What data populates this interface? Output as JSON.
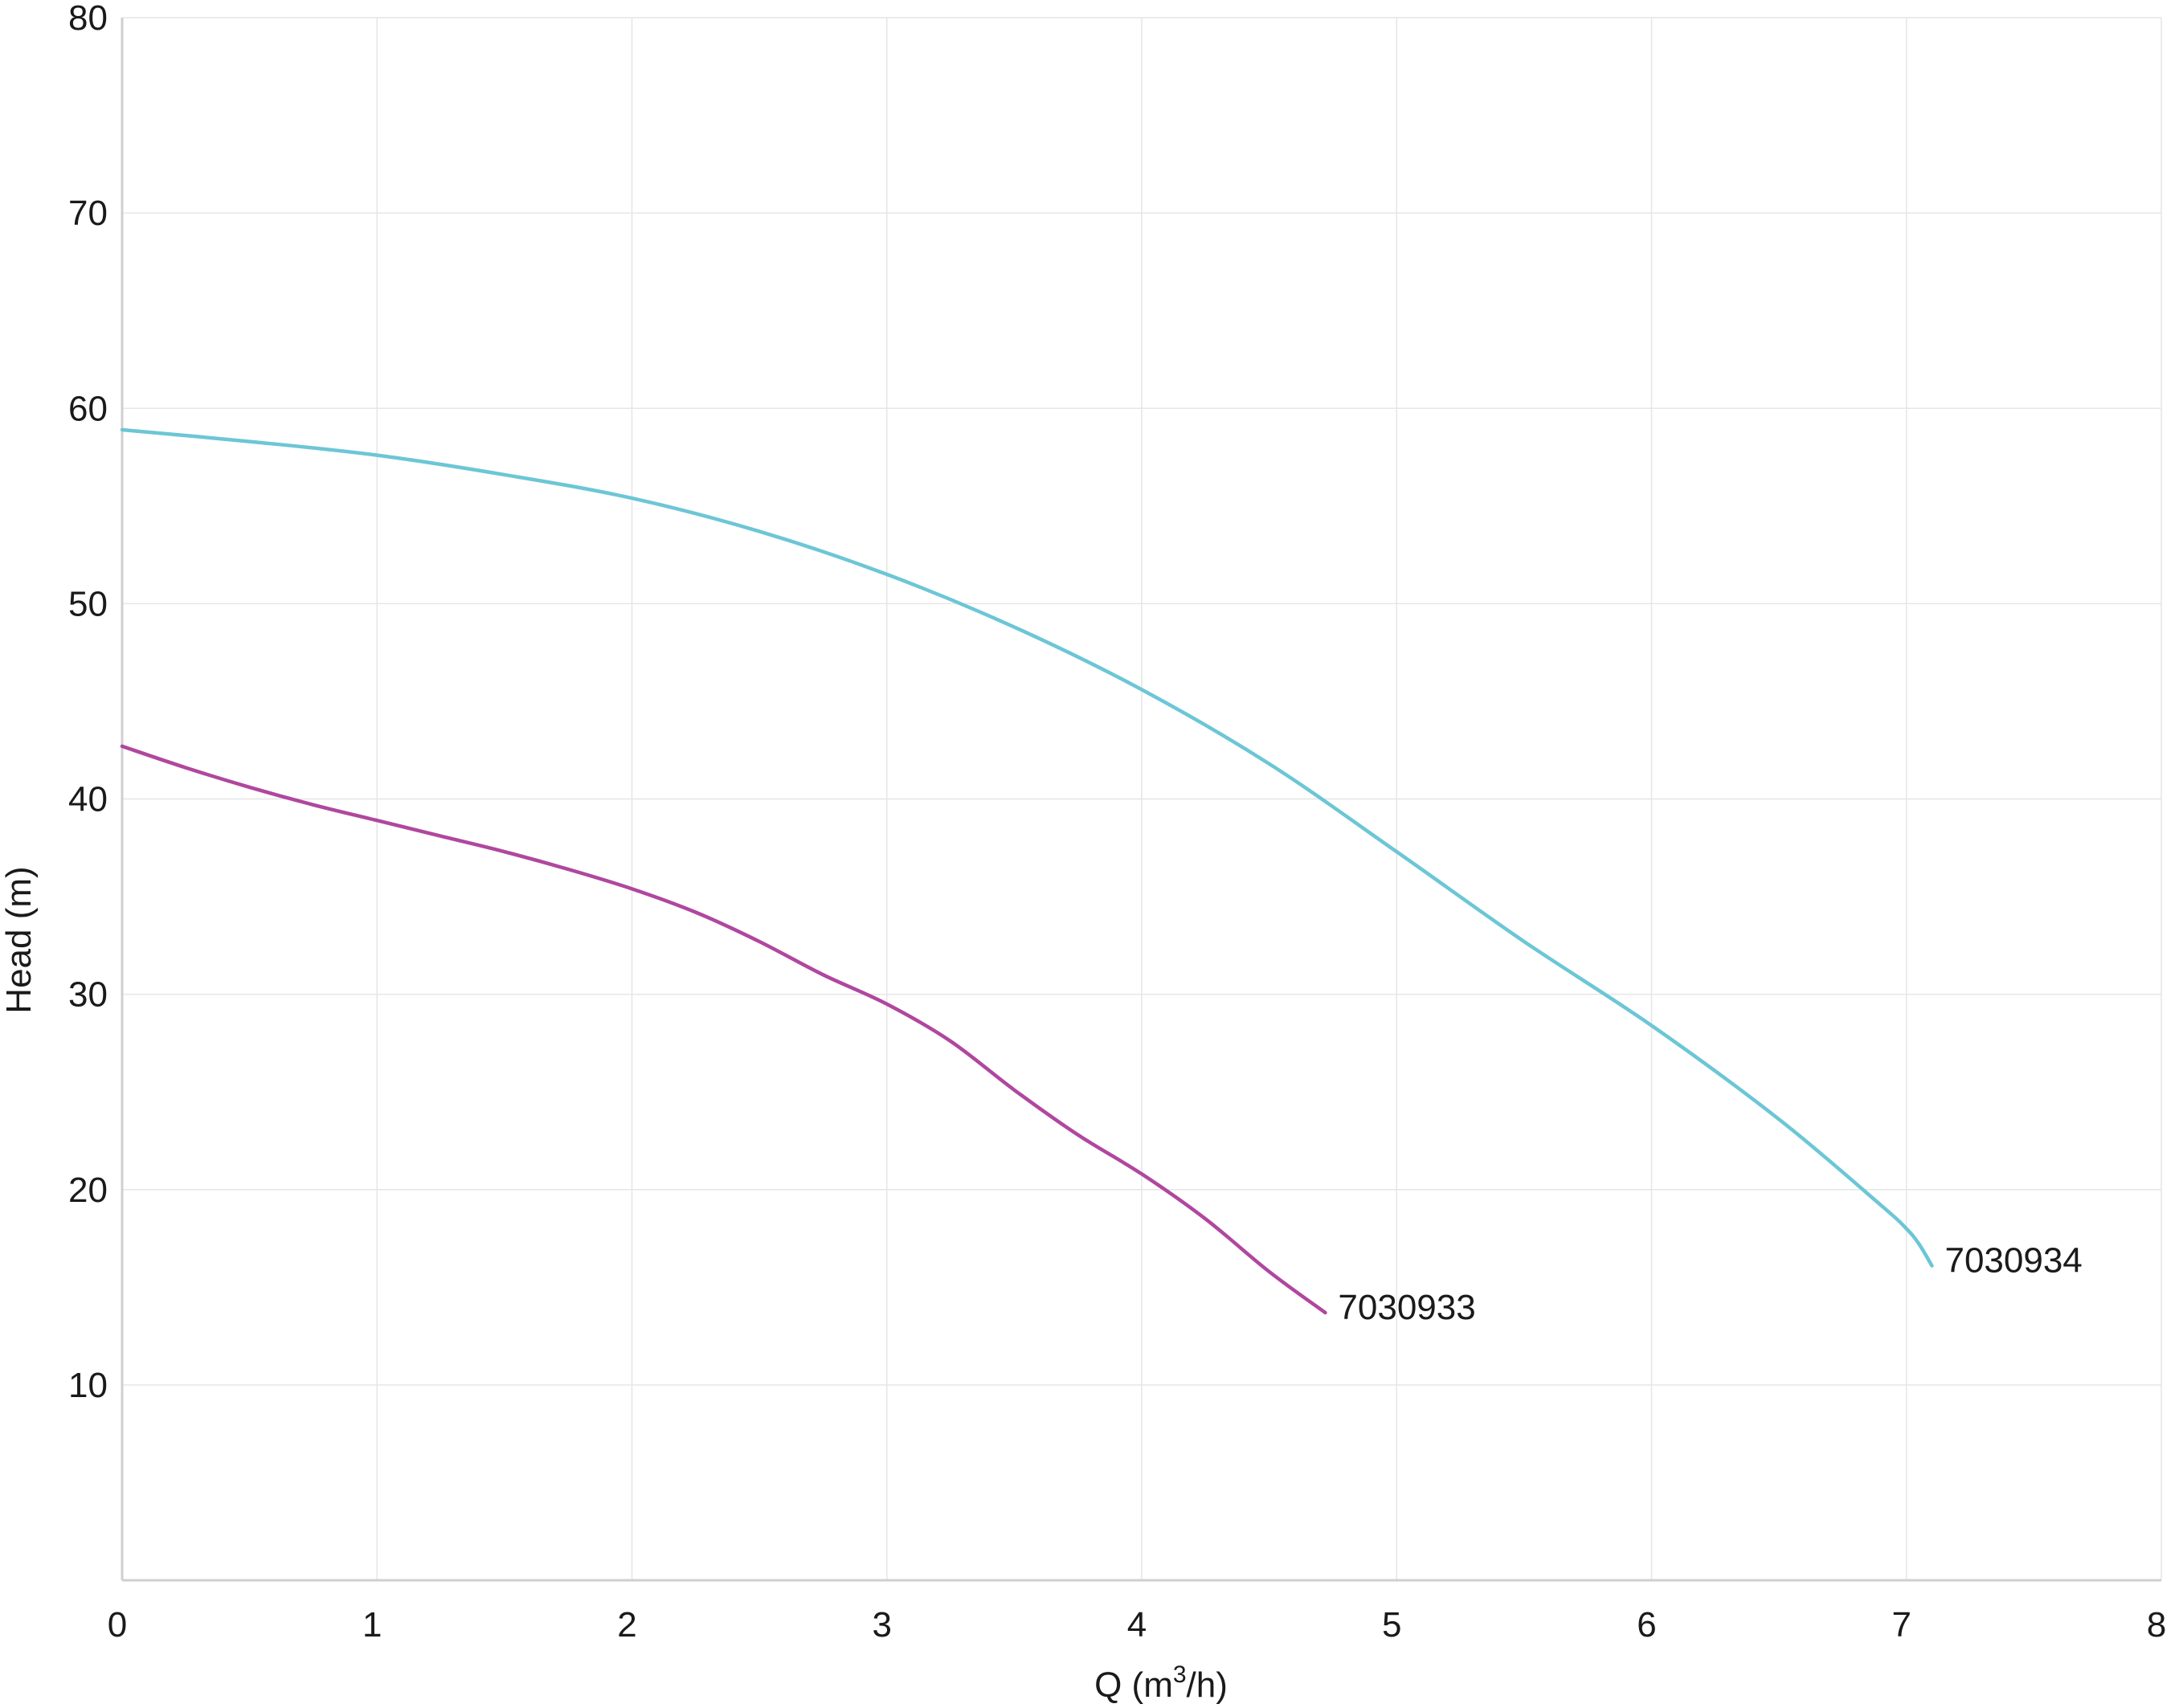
{
  "chart_data": {
    "type": "line",
    "title": "",
    "xlabel": "Q (m",
    "xlabel_sup": "3",
    "xlabel_tail": "/h)",
    "ylabel": "Head (m)",
    "xlim": [
      0,
      8
    ],
    "ylim": [
      0,
      80
    ],
    "x_ticks": [
      0,
      1,
      2,
      3,
      4,
      5,
      6,
      7,
      8
    ],
    "y_ticks": [
      10,
      20,
      30,
      40,
      50,
      60,
      70,
      80
    ],
    "x_tick_labels": [
      "0",
      "1",
      "2",
      "3",
      "4",
      "5",
      "6",
      "7",
      "8"
    ],
    "y_tick_labels": [
      "10",
      "20",
      "30",
      "40",
      "50",
      "60",
      "70",
      "80"
    ],
    "grid": true,
    "series": [
      {
        "name": "7030933",
        "color": "#b0479f",
        "points": [
          [
            0,
            42.7
          ],
          [
            0.25,
            41.6
          ],
          [
            0.5,
            40.6
          ],
          [
            0.75,
            39.7
          ],
          [
            1.0,
            38.9
          ],
          [
            1.25,
            38.1
          ],
          [
            1.5,
            37.3
          ],
          [
            1.75,
            36.4
          ],
          [
            2.0,
            35.4
          ],
          [
            2.25,
            34.2
          ],
          [
            2.5,
            32.7
          ],
          [
            2.75,
            31.0
          ],
          [
            3.0,
            29.5
          ],
          [
            3.25,
            27.6
          ],
          [
            3.5,
            25.1
          ],
          [
            3.75,
            22.8
          ],
          [
            4.0,
            20.8
          ],
          [
            4.25,
            18.5
          ],
          [
            4.5,
            15.8
          ],
          [
            4.72,
            13.7
          ]
        ]
      },
      {
        "name": "7030934",
        "color": "#6cc6d6",
        "points": [
          [
            0,
            58.9
          ],
          [
            0.5,
            58.3
          ],
          [
            1.0,
            57.6
          ],
          [
            1.5,
            56.6
          ],
          [
            2.0,
            55.4
          ],
          [
            2.5,
            53.7
          ],
          [
            3.0,
            51.5
          ],
          [
            3.5,
            48.8
          ],
          [
            4.0,
            45.6
          ],
          [
            4.5,
            41.8
          ],
          [
            5.0,
            37.3
          ],
          [
            5.5,
            32.7
          ],
          [
            6.0,
            28.4
          ],
          [
            6.5,
            23.6
          ],
          [
            6.9,
            19.2
          ],
          [
            7.0,
            18.0
          ],
          [
            7.05,
            17.2
          ],
          [
            7.1,
            16.1
          ]
        ]
      }
    ]
  }
}
